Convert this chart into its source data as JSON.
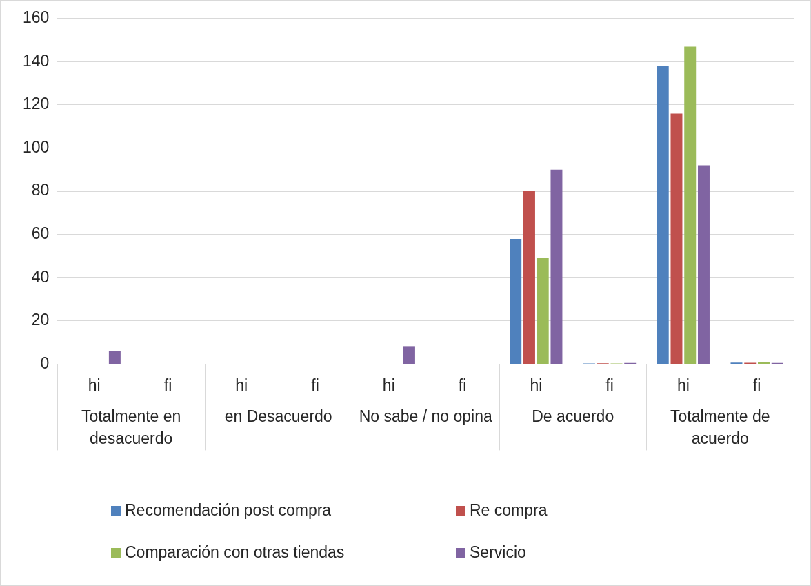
{
  "chart_data": {
    "type": "bar",
    "categories": [
      "hi",
      "fi",
      "hi",
      "fi",
      "hi",
      "fi",
      "hi",
      "fi",
      "hi",
      "fi"
    ],
    "annotations": [
      "Totalmente en desacuerdo",
      "en Desacuerdo",
      "No sabe / no opina",
      "De acuerdo",
      "Totalmente de acuerdo"
    ],
    "series": [
      {
        "name": "Recomendación post compra",
        "color": "#4f81bd",
        "values": [
          0,
          0,
          0,
          0,
          0,
          0,
          58,
          0.3,
          138,
          0.7
        ]
      },
      {
        "name": "Re compra",
        "color": "#c0504d",
        "values": [
          0,
          0,
          0,
          0,
          0,
          0,
          80,
          0.4,
          116,
          0.6
        ]
      },
      {
        "name": "Comparación con otras tiendas",
        "color": "#9bbb59",
        "values": [
          0,
          0,
          0,
          0,
          0,
          0,
          49,
          0.3,
          147,
          0.8
        ]
      },
      {
        "name": "Servicio",
        "color": "#8064a2",
        "values": [
          6,
          0,
          0,
          0,
          8,
          0,
          90,
          0.5,
          92,
          0.5
        ]
      }
    ],
    "ylim": [
      0,
      160
    ],
    "yticks": [
      0,
      20,
      40,
      60,
      80,
      100,
      120,
      140,
      160
    ],
    "grid": "y",
    "legend": "bottom"
  }
}
